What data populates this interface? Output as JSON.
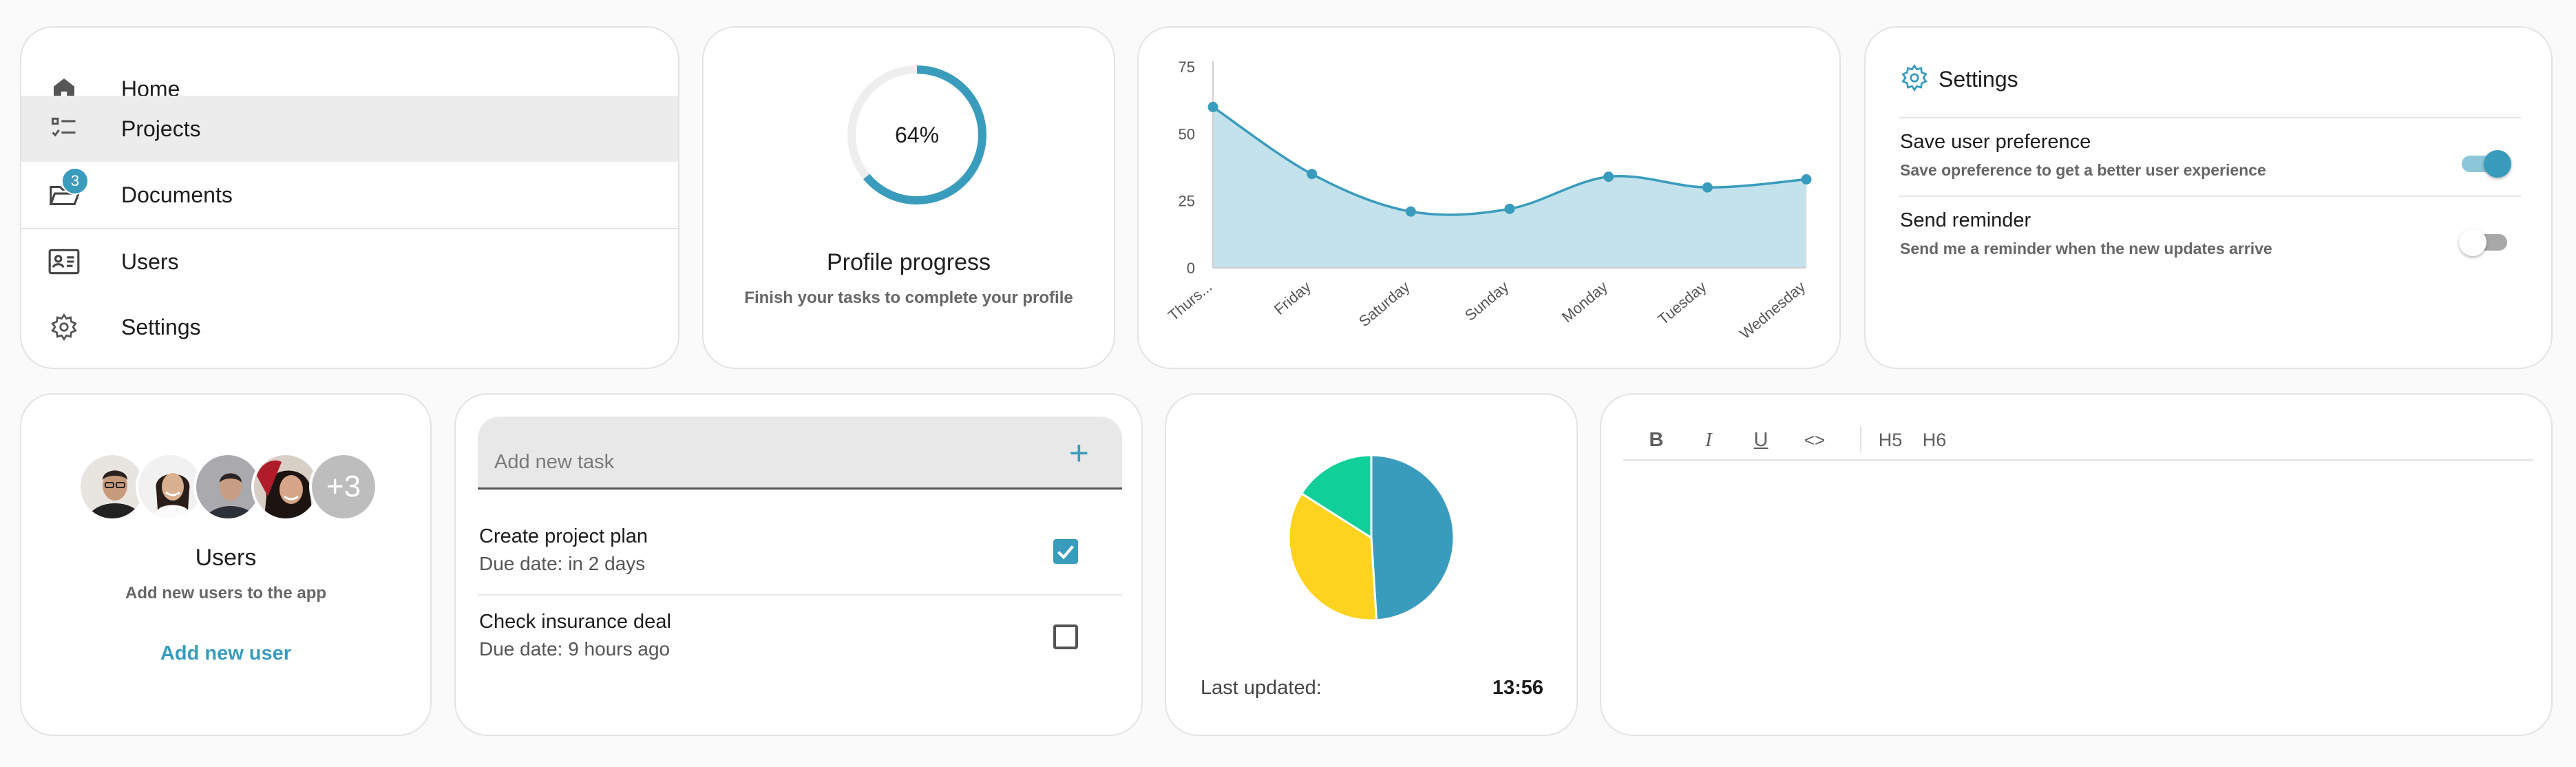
{
  "nav": {
    "items": [
      {
        "label": "Home",
        "icon": "home-icon"
      },
      {
        "label": "Projects",
        "icon": "checklist-icon",
        "active": true
      },
      {
        "label": "Documents",
        "icon": "folder-open-icon",
        "badge": "3"
      },
      {
        "label": "Users",
        "icon": "contact-card-icon"
      },
      {
        "label": "Settings",
        "icon": "gear-icon"
      }
    ]
  },
  "progress": {
    "percent_label": "64%",
    "value": 64,
    "title": "Profile progress",
    "subtitle": "Finish your tasks to complete your profile",
    "color": "#3a9cbd"
  },
  "chart_data": {
    "type": "area",
    "categories": [
      "Thurs...",
      "Friday",
      "Saturday",
      "Sunday",
      "Monday",
      "Tuesday",
      "Wednesday"
    ],
    "values": [
      60,
      35,
      21,
      22,
      34,
      30,
      33
    ],
    "yticks": [
      0,
      25,
      50,
      75
    ],
    "ylim": [
      0,
      75
    ],
    "grid": false,
    "line_color": "#3a9cbd",
    "fill_color": "#c3e2eb"
  },
  "settings": {
    "title": "Settings",
    "rows": [
      {
        "title": "Save user preference",
        "desc": "Save opreference to get a better user experience",
        "on": true
      },
      {
        "title": "Send reminder",
        "desc": "Send me a reminder when the new updates arrive",
        "on": false
      }
    ]
  },
  "users": {
    "more_label": "+3",
    "title": "Users",
    "subtitle": "Add new users to the app",
    "link": "Add new user"
  },
  "tasks": {
    "placeholder": "Add new task",
    "add_label": "+",
    "items": [
      {
        "name": "Create project plan",
        "due": "Due date: in 2 days",
        "done": true
      },
      {
        "name": "Check insurance deal",
        "due": "Due date: 9 hours ago",
        "done": false
      }
    ]
  },
  "pie": {
    "chart_data": {
      "type": "pie",
      "values": [
        49,
        35,
        16
      ],
      "colors": [
        "#3a9cbd",
        "#fdd31f",
        "#10cf99"
      ]
    },
    "updated_label": "Last updated:",
    "updated_time": "13:56"
  },
  "editor": {
    "toolbar": [
      {
        "label": "B",
        "name": "bold-button"
      },
      {
        "label": "I",
        "name": "italic-button"
      },
      {
        "label": "U",
        "name": "underline-button"
      },
      {
        "label": "<>",
        "name": "code-button"
      },
      {
        "label": "H5",
        "name": "heading5-button"
      },
      {
        "label": "H6",
        "name": "heading6-button"
      }
    ]
  }
}
